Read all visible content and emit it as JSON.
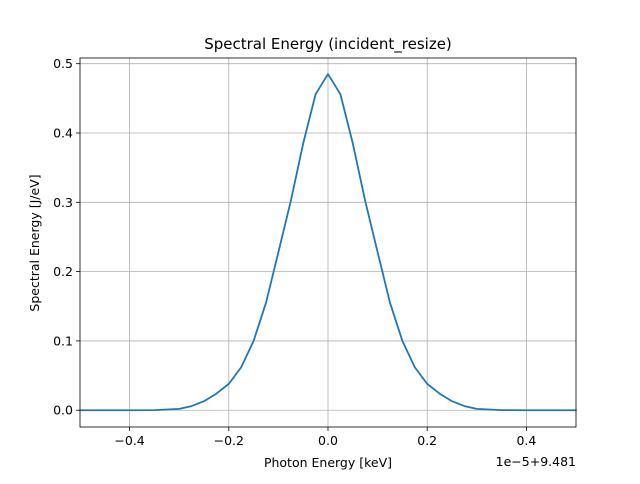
{
  "chart_data": {
    "type": "line",
    "title": "Spectral Energy (incident_resize)",
    "xlabel": "Photon Energy [keV]",
    "ylabel": "Spectral Energy [J/eV]",
    "x_offset_text": "1e−5+9.481",
    "xlim": [
      -0.5,
      0.5
    ],
    "ylim": [
      -0.0242,
      0.5082
    ],
    "x_ticks": [
      -0.4,
      -0.2,
      0.0,
      0.2,
      0.4
    ],
    "x_tick_labels": [
      "−0.4",
      "−0.2",
      "0.0",
      "0.2",
      "0.4"
    ],
    "y_ticks": [
      0.0,
      0.1,
      0.2,
      0.3,
      0.4,
      0.5
    ],
    "y_tick_labels": [
      "0.0",
      "0.1",
      "0.2",
      "0.3",
      "0.4",
      "0.5"
    ],
    "grid": true,
    "line_color": "#1f77b4",
    "series": [
      {
        "x": [
          -0.5,
          -0.45,
          -0.4,
          -0.35,
          -0.3,
          -0.275,
          -0.25,
          -0.225,
          -0.2,
          -0.175,
          -0.15,
          -0.125,
          -0.1,
          -0.075,
          -0.05,
          -0.025,
          0.0,
          0.025,
          0.05,
          0.075,
          0.1,
          0.125,
          0.15,
          0.175,
          0.2,
          0.225,
          0.25,
          0.275,
          0.3,
          0.35,
          0.4,
          0.45,
          0.5
        ],
        "y": [
          0.0,
          0.0,
          0.0,
          0.0002,
          0.002,
          0.006,
          0.013,
          0.024,
          0.038,
          0.062,
          0.1,
          0.155,
          0.228,
          0.302,
          0.385,
          0.456,
          0.485,
          0.456,
          0.385,
          0.302,
          0.228,
          0.155,
          0.1,
          0.062,
          0.038,
          0.024,
          0.013,
          0.006,
          0.002,
          0.0002,
          0.0,
          0.0,
          0.0
        ]
      }
    ]
  }
}
